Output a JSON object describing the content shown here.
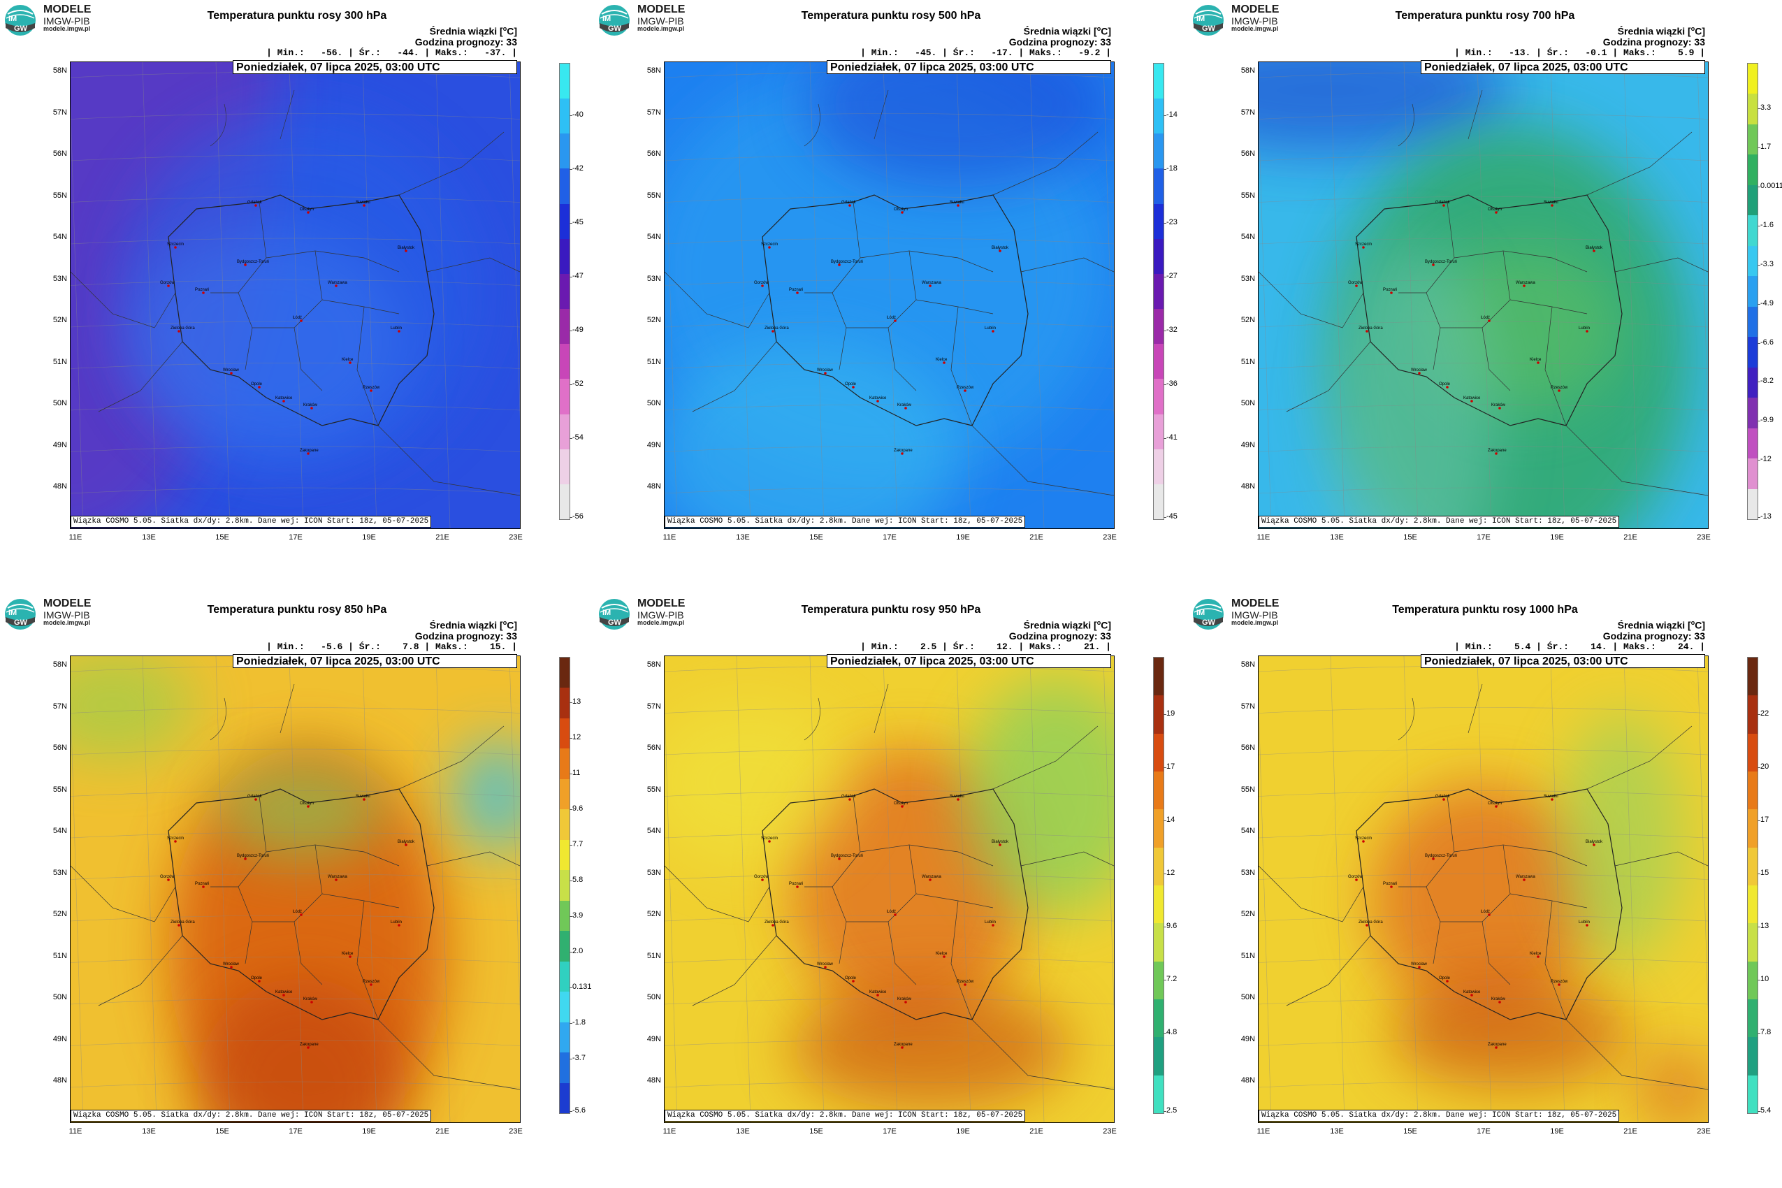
{
  "brand": {
    "name": "MODELE",
    "org": "IMGW-PIB",
    "url": "modele.imgw.pl"
  },
  "common": {
    "stat_title": "Średnia wiązki [",
    "stat_unit_sup": "o",
    "stat_unit": "C]",
    "forecast_label": "Godzina prognozy: 33",
    "date": "Poniedziałek, 07 lipca 2025, 03:00 UTC",
    "footnote": "Wiązka COSMO 5.05. Siatka dx/dy: 2.8km. Dane wej: ICON Start: 18z, 05-07-2025",
    "lat_labels": [
      "58N",
      "57N",
      "56N",
      "55N",
      "54N",
      "53N",
      "52N",
      "51N",
      "50N",
      "49N",
      "48N"
    ],
    "lon_labels": [
      "11E",
      "13E",
      "15E",
      "17E",
      "19E",
      "21E",
      "23E"
    ],
    "cities": [
      "Szczecin",
      "Gdańsk",
      "Olsztyn",
      "Suwałki",
      "Białystok",
      "Bydgoszcz-Toruń",
      "Gorzów",
      "Poznań",
      "Warszawa",
      "Zielona Góra",
      "Łódź",
      "Lublin",
      "Wrocław",
      "Opole",
      "Kielce",
      "Katowice",
      "Kraków",
      "Rzeszów",
      "Zakopane"
    ]
  },
  "panels": [
    {
      "title": "Temperatura punktu rosy 300 hPa",
      "stats": "| Min.:   -56. | Śr.:   -44. | Maks.:   -37. |",
      "min": -56,
      "mean": -44,
      "max": -37,
      "colorbar": {
        "labels": [
          "-40",
          "-42",
          "-45",
          "-47",
          "-49",
          "-52",
          "-54",
          "-56"
        ],
        "colors": [
          "#38e8f0",
          "#2ec0f5",
          "#2a97f0",
          "#2060e6",
          "#1c2fd8",
          "#3a1ac0",
          "#6a1ab0",
          "#9a2aa8",
          "#c846b8",
          "#e070c8",
          "#e8a0d8",
          "#eed0e6",
          "#e8e8e8"
        ]
      }
    },
    {
      "title": "Temperatura punktu rosy 500 hPa",
      "stats": "| Min.:   -45. | Śr.:   -17. | Maks.:   -9.2 |",
      "min": -45,
      "mean": -17,
      "max": -9.2,
      "colorbar": {
        "labels": [
          "-14",
          "-18",
          "-23",
          "-27",
          "-32",
          "-36",
          "-41",
          "-45"
        ],
        "colors": [
          "#38e8f0",
          "#2ec0f5",
          "#2a97f0",
          "#2060e6",
          "#1c2fd8",
          "#3a1ac0",
          "#6a1ab0",
          "#9a2aa8",
          "#c846b8",
          "#e070c8",
          "#e8a0d8",
          "#eed0e6",
          "#e8e8e8"
        ]
      }
    },
    {
      "title": "Temperatura punktu rosy 700 hPa",
      "stats": "| Min.:   -13. | Śr.:   -0.1 | Maks.:    5.9 |",
      "min": -13,
      "mean": -0.1,
      "max": 5.9,
      "colorbar": {
        "labels": [
          "3.3",
          "1.7",
          "0.0011",
          "-1.6",
          "-3.3",
          "-4.9",
          "-6.6",
          "-8.2",
          "-9.9",
          "-12",
          "-13"
        ],
        "colors": [
          "#f0f020",
          "#c8e040",
          "#70c858",
          "#30b060",
          "#20a078",
          "#40d8d0",
          "#38c8f0",
          "#2aa0f0",
          "#2070e6",
          "#1c3cd8",
          "#4020c0",
          "#8030b0",
          "#c050c0",
          "#e090d0",
          "#e8e8e8"
        ]
      }
    },
    {
      "title": "Temperatura punktu rosy 850 hPa",
      "stats": "| Min.:   -5.6 | Śr.:    7.8 | Maks.:    15. |",
      "min": -5.6,
      "mean": 7.8,
      "max": 15,
      "colorbar": {
        "labels": [
          "13",
          "12",
          "11",
          "9.6",
          "7.7",
          "5.8",
          "3.9",
          "2.0",
          "0.131",
          "-1.8",
          "-3.7",
          "-5.6"
        ],
        "colors": [
          "#6a2810",
          "#a83010",
          "#d84c10",
          "#e87a18",
          "#f0a028",
          "#f0c838",
          "#f0e830",
          "#c8e048",
          "#70c858",
          "#30b070",
          "#30d0c0",
          "#40d8f0",
          "#30a8f0",
          "#2070e0",
          "#1c3cd0"
        ]
      }
    },
    {
      "title": "Temperatura punktu rosy 950 hPa",
      "stats": "| Min.:    2.5 | Śr.:    12. | Maks.:    21. |",
      "min": 2.5,
      "mean": 12,
      "max": 21,
      "colorbar": {
        "labels": [
          "19",
          "17",
          "14",
          "12",
          "9.6",
          "7.2",
          "4.8",
          "2.5"
        ],
        "colors": [
          "#6a2810",
          "#a83010",
          "#d84c10",
          "#e87a18",
          "#f0a028",
          "#f0c838",
          "#f0e830",
          "#c8e048",
          "#70c858",
          "#30b070",
          "#20a080",
          "#40e0c0"
        ]
      }
    },
    {
      "title": "Temperatura punktu rosy 1000 hPa",
      "stats": "| Min.:    5.4 | Śr.:    14. | Maks.:    24. |",
      "min": 5.4,
      "mean": 14,
      "max": 24,
      "colorbar": {
        "labels": [
          "22",
          "20",
          "17",
          "15",
          "13",
          "10",
          "7.8",
          "5.4"
        ],
        "colors": [
          "#6a2810",
          "#a83010",
          "#d84c10",
          "#e87a18",
          "#f0a028",
          "#f0c838",
          "#f0e830",
          "#c8e048",
          "#70c858",
          "#30b070",
          "#20a080",
          "#40e0c0"
        ]
      }
    }
  ]
}
